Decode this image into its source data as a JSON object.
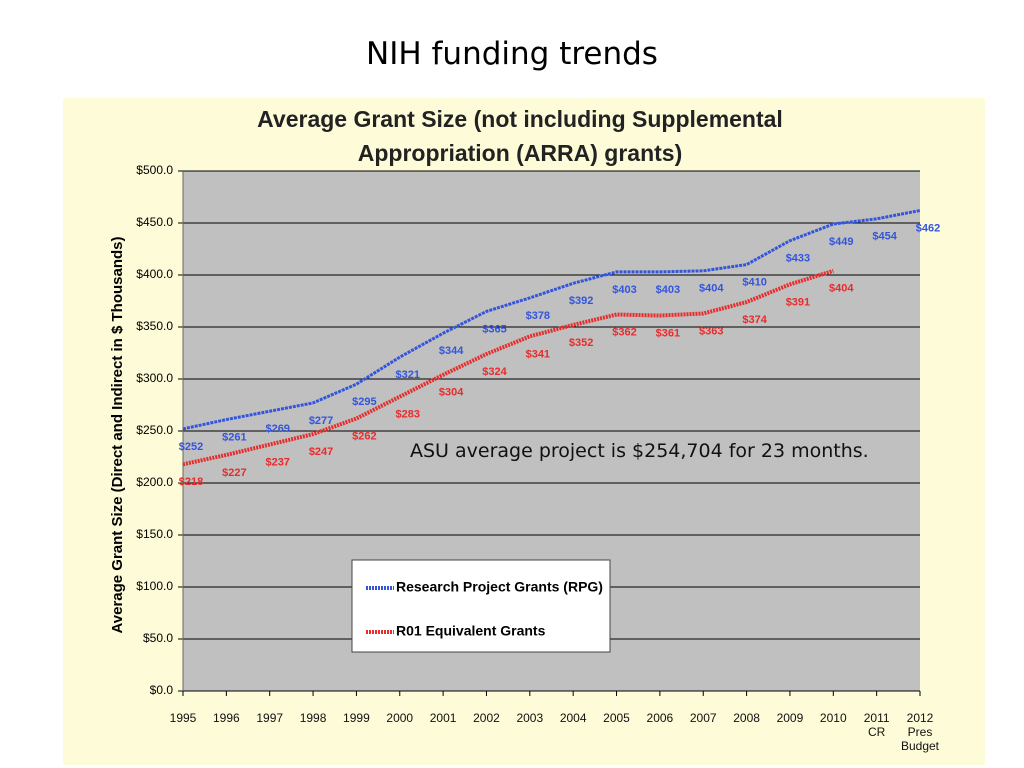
{
  "heading": "NIH funding trends",
  "chart_data": {
    "type": "line",
    "title": "Average Grant Size (not including Supplemental Appropriation (ARRA) grants)",
    "y_label": "Average Grant Size (Direct and Indirect in $ Thousands)",
    "annotation": "ASU average project is $254,704 for 23 months.",
    "categories": [
      "1995",
      "1996",
      "1997",
      "1998",
      "1999",
      "2000",
      "2001",
      "2002",
      "2003",
      "2004",
      "2005",
      "2006",
      "2007",
      "2008",
      "2009",
      "2010",
      "2011\nCR",
      "2012\nPres\nBudget"
    ],
    "series": [
      {
        "name": "Research Project Grants (RPG)",
        "color": "#3355dd",
        "values": [
          252,
          261,
          269,
          277,
          295,
          321,
          344,
          365,
          378,
          392,
          403,
          403,
          404,
          410,
          433,
          449,
          454,
          462
        ],
        "value_labels": [
          "$252",
          "$261",
          "$269",
          "$277",
          "$295",
          "$321",
          "$344",
          "$365",
          "$378",
          "$392",
          "$403",
          "$403",
          "$404",
          "$410",
          "$433",
          "$449",
          "$454",
          "$462"
        ]
      },
      {
        "name": "R01 Equivalent Grants",
        "color": "#e82c2c",
        "values": [
          218,
          227,
          237,
          247,
          262,
          283,
          304,
          324,
          341,
          352,
          362,
          361,
          363,
          374,
          391,
          404,
          null,
          null
        ],
        "value_labels": [
          "$218",
          "$227",
          "$237",
          "$247",
          "$262",
          "$283",
          "$304",
          "$324",
          "$341",
          "$352",
          "$362",
          "$361",
          "$363",
          "$374",
          "$391",
          "$404",
          null,
          null
        ]
      }
    ],
    "ylim": [
      0,
      500
    ],
    "yticks": [
      {
        "value": 0,
        "label": "$0.0"
      },
      {
        "value": 50,
        "label": "$50.0"
      },
      {
        "value": 100,
        "label": "$100.0"
      },
      {
        "value": 150,
        "label": "$150.0"
      },
      {
        "value": 200,
        "label": "$200.0"
      },
      {
        "value": 250,
        "label": "$250.0"
      },
      {
        "value": 300,
        "label": "$300.0"
      },
      {
        "value": 350,
        "label": "$350.0"
      },
      {
        "value": 400,
        "label": "$400.0"
      },
      {
        "value": 450,
        "label": "$450.0"
      },
      {
        "value": 500,
        "label": "$500.0"
      }
    ],
    "grid": true
  }
}
